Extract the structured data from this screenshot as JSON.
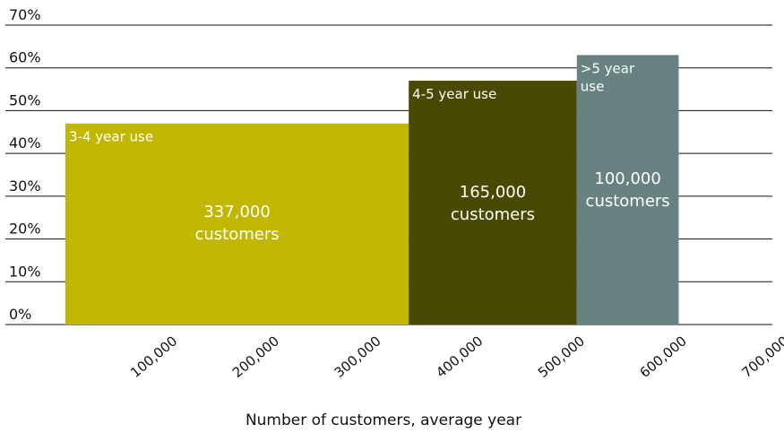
{
  "chart_data": {
    "type": "bar",
    "title": "",
    "xlabel": "Number of customers, average year",
    "ylabel": "",
    "xlim": [
      0,
      700000
    ],
    "ylim": [
      0,
      70
    ],
    "x_ticks": [
      "100,000",
      "200,000",
      "300,000",
      "400,000",
      "500,000",
      "600,000",
      "700,000"
    ],
    "y_ticks": [
      "0%",
      "10%",
      "20%",
      "30%",
      "40%",
      "50%",
      "60%",
      "70%"
    ],
    "grid": true,
    "series": [
      {
        "name": "3-4 year use",
        "customers": 337000,
        "value": 47,
        "count_label": [
          "337,000",
          "customers"
        ],
        "color": "#c2b700"
      },
      {
        "name": "4-5 year use",
        "customers": 165000,
        "value": 57,
        "count_label": [
          "165,000",
          "customers"
        ],
        "color": "#474a00"
      },
      {
        "name": ">5 year use",
        "customers": 100000,
        "value": 63,
        "count_label": [
          "100,000",
          "customers"
        ],
        "color": "#688282"
      }
    ]
  }
}
